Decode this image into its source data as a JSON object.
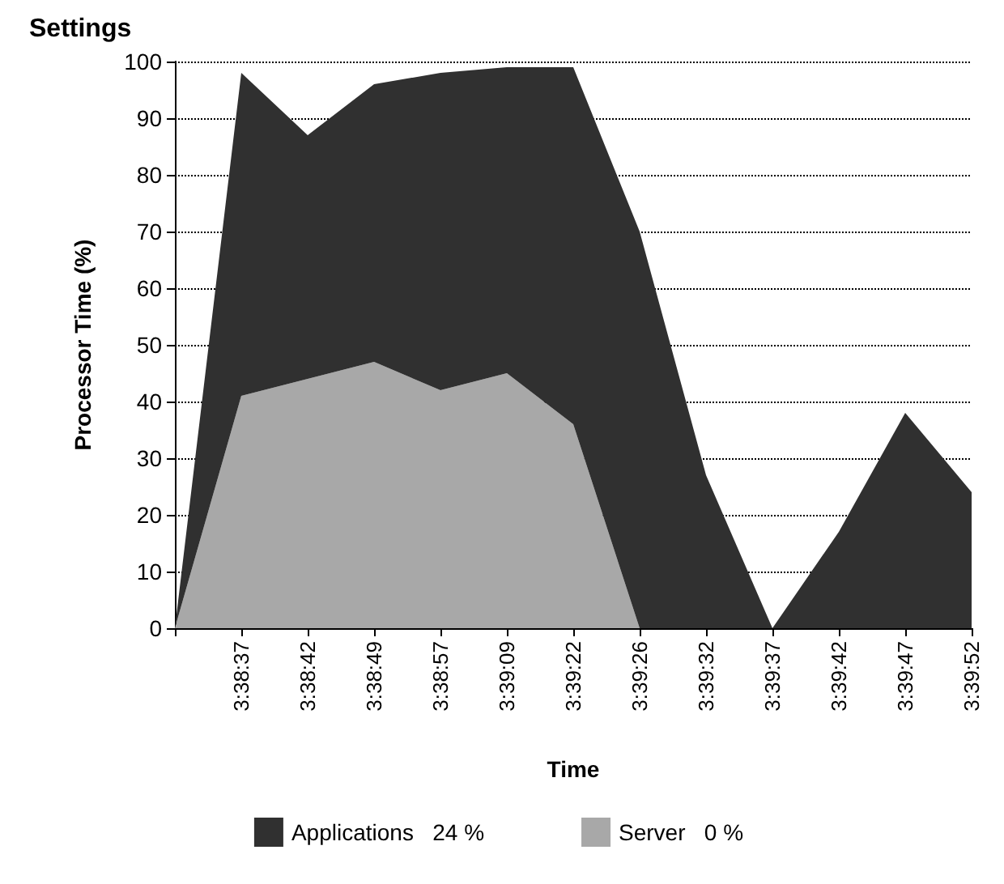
{
  "chart_data": {
    "type": "area",
    "xlabel": "Time",
    "ylabel": "Processor Time (%)",
    "annotations": [
      "Settings"
    ],
    "categories": [
      null,
      "3:38:37",
      "3:38:42",
      "3:38:49",
      "3:38:57",
      "3:39:09",
      "3:39:22",
      "3:39:26",
      "3:39:32",
      "3:39:37",
      "3:39:42",
      "3:39:47",
      "3:39:52"
    ],
    "series": [
      {
        "name": "Server   0 %",
        "color": "#a8a8a8",
        "values": [
          0,
          41,
          44,
          47,
          42,
          45,
          36,
          0,
          0,
          0,
          0,
          0,
          0
        ]
      },
      {
        "name": "Applications   24 %",
        "color": "#303030",
        "values": [
          0,
          57,
          43,
          49,
          56,
          54,
          63,
          70,
          27,
          0,
          17,
          38,
          24
        ]
      }
    ],
    "stacked": true,
    "ylim": [
      0,
      100
    ],
    "yticks": [
      0,
      10,
      20,
      30,
      40,
      50,
      60,
      70,
      80,
      90,
      100
    ],
    "grid": "y",
    "legend": "bottom",
    "marker": "none"
  }
}
